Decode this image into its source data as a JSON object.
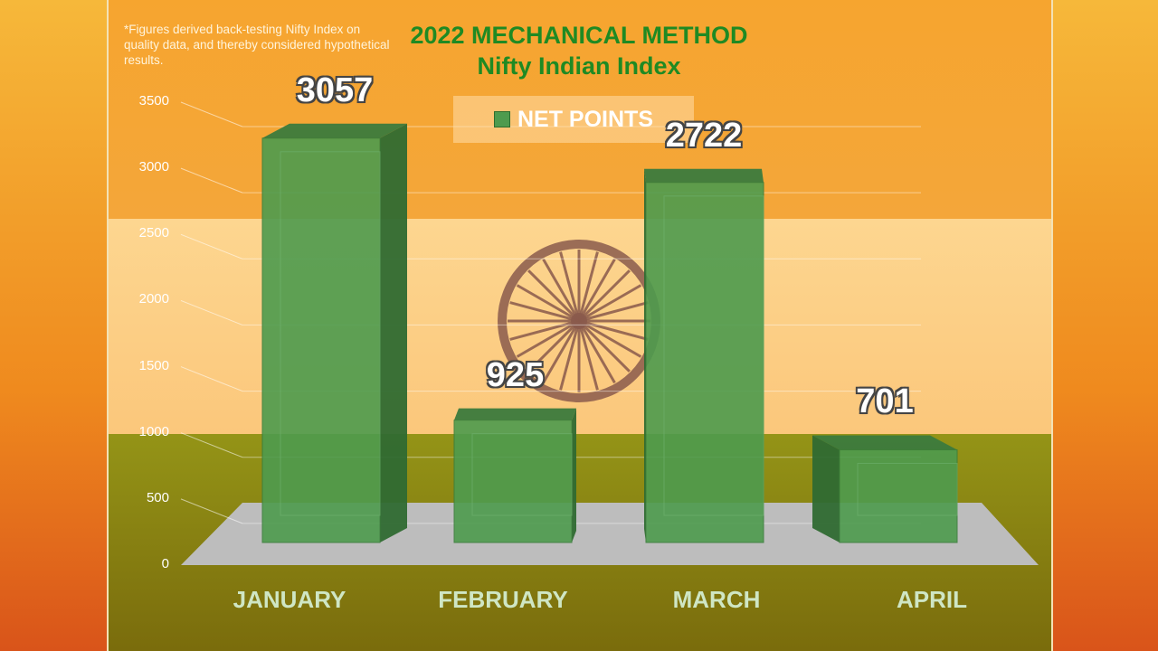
{
  "note": "*Figures derived back-testing Nifty Index on quality data, and thereby considered hypothetical results.",
  "colors": {
    "bar": "#4e9b4e",
    "title": "#1f8a23"
  },
  "icons": {
    "center": "ashoka-chakra-icon"
  },
  "chart_data": {
    "type": "bar",
    "title": "2022 MECHANICAL METHOD",
    "subtitle": "Nifty Indian Index",
    "categories": [
      "JANUARY",
      "FEBRUARY",
      "MARCH",
      "APRIL"
    ],
    "series": [
      {
        "name": "NET POINTS",
        "values": [
          3057,
          925,
          2722,
          701
        ]
      }
    ],
    "data_labels": [
      "3057",
      "925",
      "2722",
      "701"
    ],
    "yticks": [
      "0",
      "500",
      "1000",
      "1500",
      "2000",
      "2500",
      "3000",
      "3500"
    ],
    "ylim": [
      0,
      3500
    ],
    "xlabel": "",
    "ylabel": "",
    "grid": true,
    "legend": "top-center",
    "style": "3d-bar"
  }
}
